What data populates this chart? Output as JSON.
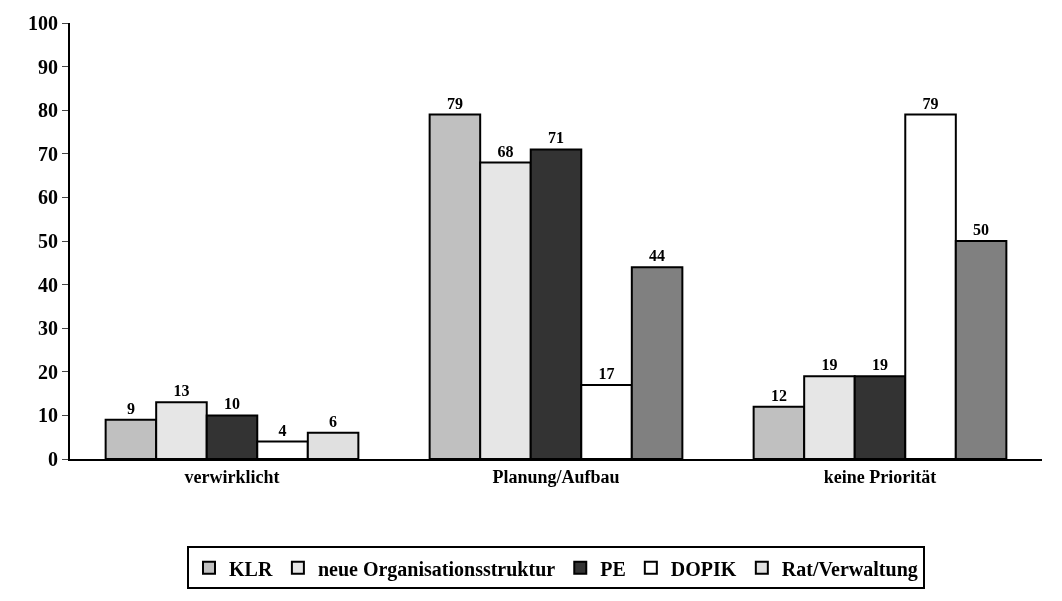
{
  "chart_data": {
    "type": "bar",
    "categories": [
      "verwirklicht",
      "Planung/Aufbau",
      "keine Priorität"
    ],
    "series": [
      {
        "name": "KLR",
        "color": "#c0c0c0",
        "values": [
          9,
          79,
          12
        ]
      },
      {
        "name": "neue Organisationsstruktur",
        "color": "#e6e6e6",
        "values": [
          13,
          68,
          19
        ]
      },
      {
        "name": "PE",
        "color": "#333333",
        "values": [
          10,
          71,
          19
        ]
      },
      {
        "name": "DOPIK",
        "color": "#ffffff",
        "values": [
          4,
          17,
          79
        ]
      },
      {
        "name": "Rat/Verwaltung",
        "color": "#808080",
        "colors": [
          "#e0e0e0",
          "#808080",
          "#808080"
        ],
        "values": [
          6,
          44,
          50
        ]
      }
    ],
    "ylim": [
      0,
      100
    ],
    "yticks": [
      0,
      10,
      20,
      30,
      40,
      50,
      60,
      70,
      80,
      90,
      100
    ],
    "data_labels": true,
    "legend": "bottom"
  }
}
